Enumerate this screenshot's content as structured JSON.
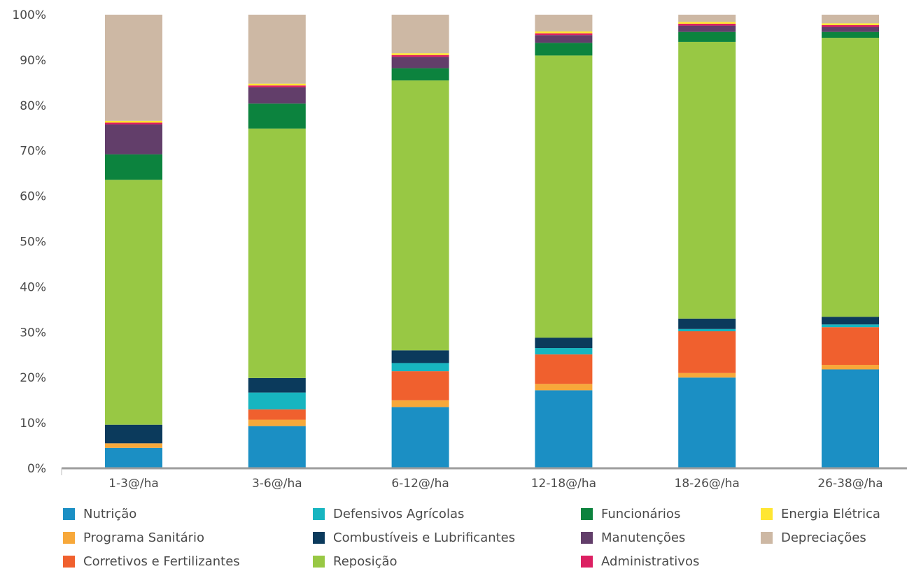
{
  "chart_data": {
    "type": "bar",
    "stacked": true,
    "title": "",
    "xlabel": "",
    "ylabel": "",
    "ylim": [
      0,
      100
    ],
    "yticks": [
      0,
      10,
      20,
      30,
      40,
      50,
      60,
      70,
      80,
      90,
      100
    ],
    "ytick_labels": [
      "0%",
      "10%",
      "20%",
      "30%",
      "40%",
      "50%",
      "60%",
      "70%",
      "80%",
      "90%",
      "100%"
    ],
    "grid": false,
    "legend_position": "bottom",
    "categories": [
      "1-3@/ha",
      "3-6@/ha",
      "6-12@/ha",
      "12-18@/ha",
      "18-26@/ha",
      "26-38@/ha"
    ],
    "series": [
      {
        "name": "Nutrição",
        "color": "#1b8fc4",
        "values": [
          4.5,
          9.3,
          13.5,
          17.2,
          20.0,
          21.8
        ]
      },
      {
        "name": "Programa Sanitário",
        "color": "#f7a83a",
        "values": [
          1.0,
          1.4,
          1.5,
          1.4,
          1.0,
          1.0
        ]
      },
      {
        "name": "Corretivos e Fertilizantes",
        "color": "#f0602e",
        "values": [
          0.0,
          2.3,
          6.4,
          6.5,
          9.2,
          8.3
        ]
      },
      {
        "name": "Defensivos Agrícolas",
        "color": "#17b5c0",
        "values": [
          0.0,
          3.7,
          1.8,
          1.4,
          0.5,
          0.6
        ]
      },
      {
        "name": "Combustíveis e Lubrificantes",
        "color": "#0b3a5c",
        "values": [
          4.1,
          3.2,
          2.8,
          2.3,
          2.3,
          1.7
        ]
      },
      {
        "name": "Reposição",
        "color": "#98c844",
        "values": [
          54.0,
          55.0,
          59.5,
          62.2,
          61.0,
          61.5
        ]
      },
      {
        "name": "Funcionários",
        "color": "#0c833e",
        "values": [
          5.6,
          5.5,
          2.7,
          2.8,
          2.2,
          1.3
        ]
      },
      {
        "name": "Manutenções",
        "color": "#623e6a",
        "values": [
          6.6,
          3.6,
          2.5,
          1.7,
          1.4,
          1.1
        ]
      },
      {
        "name": "Administrativos",
        "color": "#dc2062",
        "values": [
          0.4,
          0.4,
          0.4,
          0.4,
          0.4,
          0.4
        ]
      },
      {
        "name": "Energia Elétrica",
        "color": "#ffe632",
        "values": [
          0.4,
          0.4,
          0.4,
          0.4,
          0.4,
          0.4
        ]
      },
      {
        "name": "Depreciações",
        "color": "#cdb8a4",
        "values": [
          23.4,
          15.2,
          8.5,
          3.7,
          1.6,
          1.9
        ]
      }
    ]
  }
}
